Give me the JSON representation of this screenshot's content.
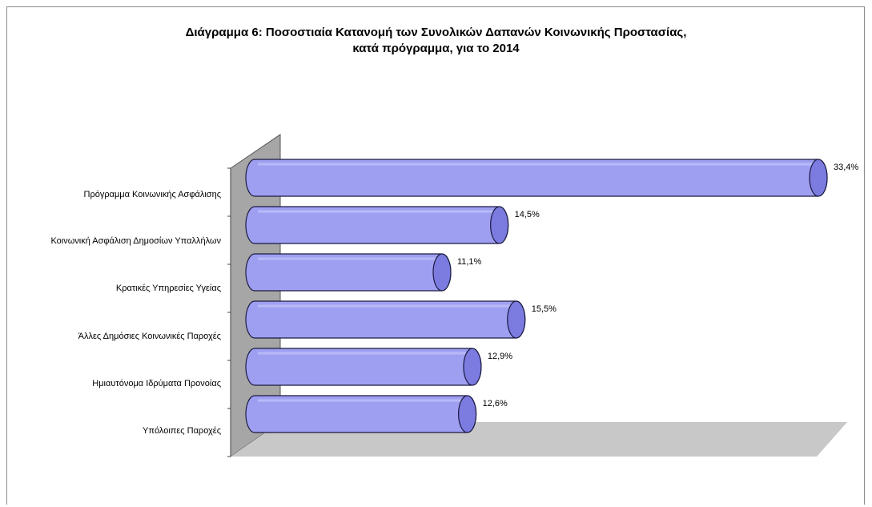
{
  "chart_data": {
    "type": "bar",
    "orientation": "horizontal",
    "style": "3d-cylinder",
    "title": "Διάγραμμα 6: Ποσοστιαία Κατανομή των Συνολικών Δαπανών Κοινωνικής Προστασίας,",
    "subtitle": "κατά πρόγραμμα, για το 2014",
    "categories": [
      "Πρόγραμμα Κοινωνικής Ασφάλισης",
      "Κοινωνική Ασφάλιση Δημοσίων Υπαλλήλων",
      "Κρατικές Υπηρεσίες Υγείας",
      "Άλλες Δημόσιες Κοινωνικές Παροχές",
      "Ημιαυτόνομα Ιδρύματα Προνοίας",
      "Υπόλοιπες Παροχές"
    ],
    "values": [
      33.4,
      14.5,
      11.1,
      15.5,
      12.9,
      12.6
    ],
    "value_labels": [
      "33,4%",
      "14,5%",
      "11,1%",
      "15,5%",
      "12,9%",
      "12,6%"
    ],
    "xlim": [
      0,
      33.4
    ],
    "grid": false,
    "legend": "none",
    "colors": {
      "bar_fill": "#9f9ff2",
      "bar_end": "#7b7be0",
      "bar_stroke": "#1a1a40",
      "wall": "#a6a6a6",
      "floor": "#c8c8c8"
    }
  }
}
